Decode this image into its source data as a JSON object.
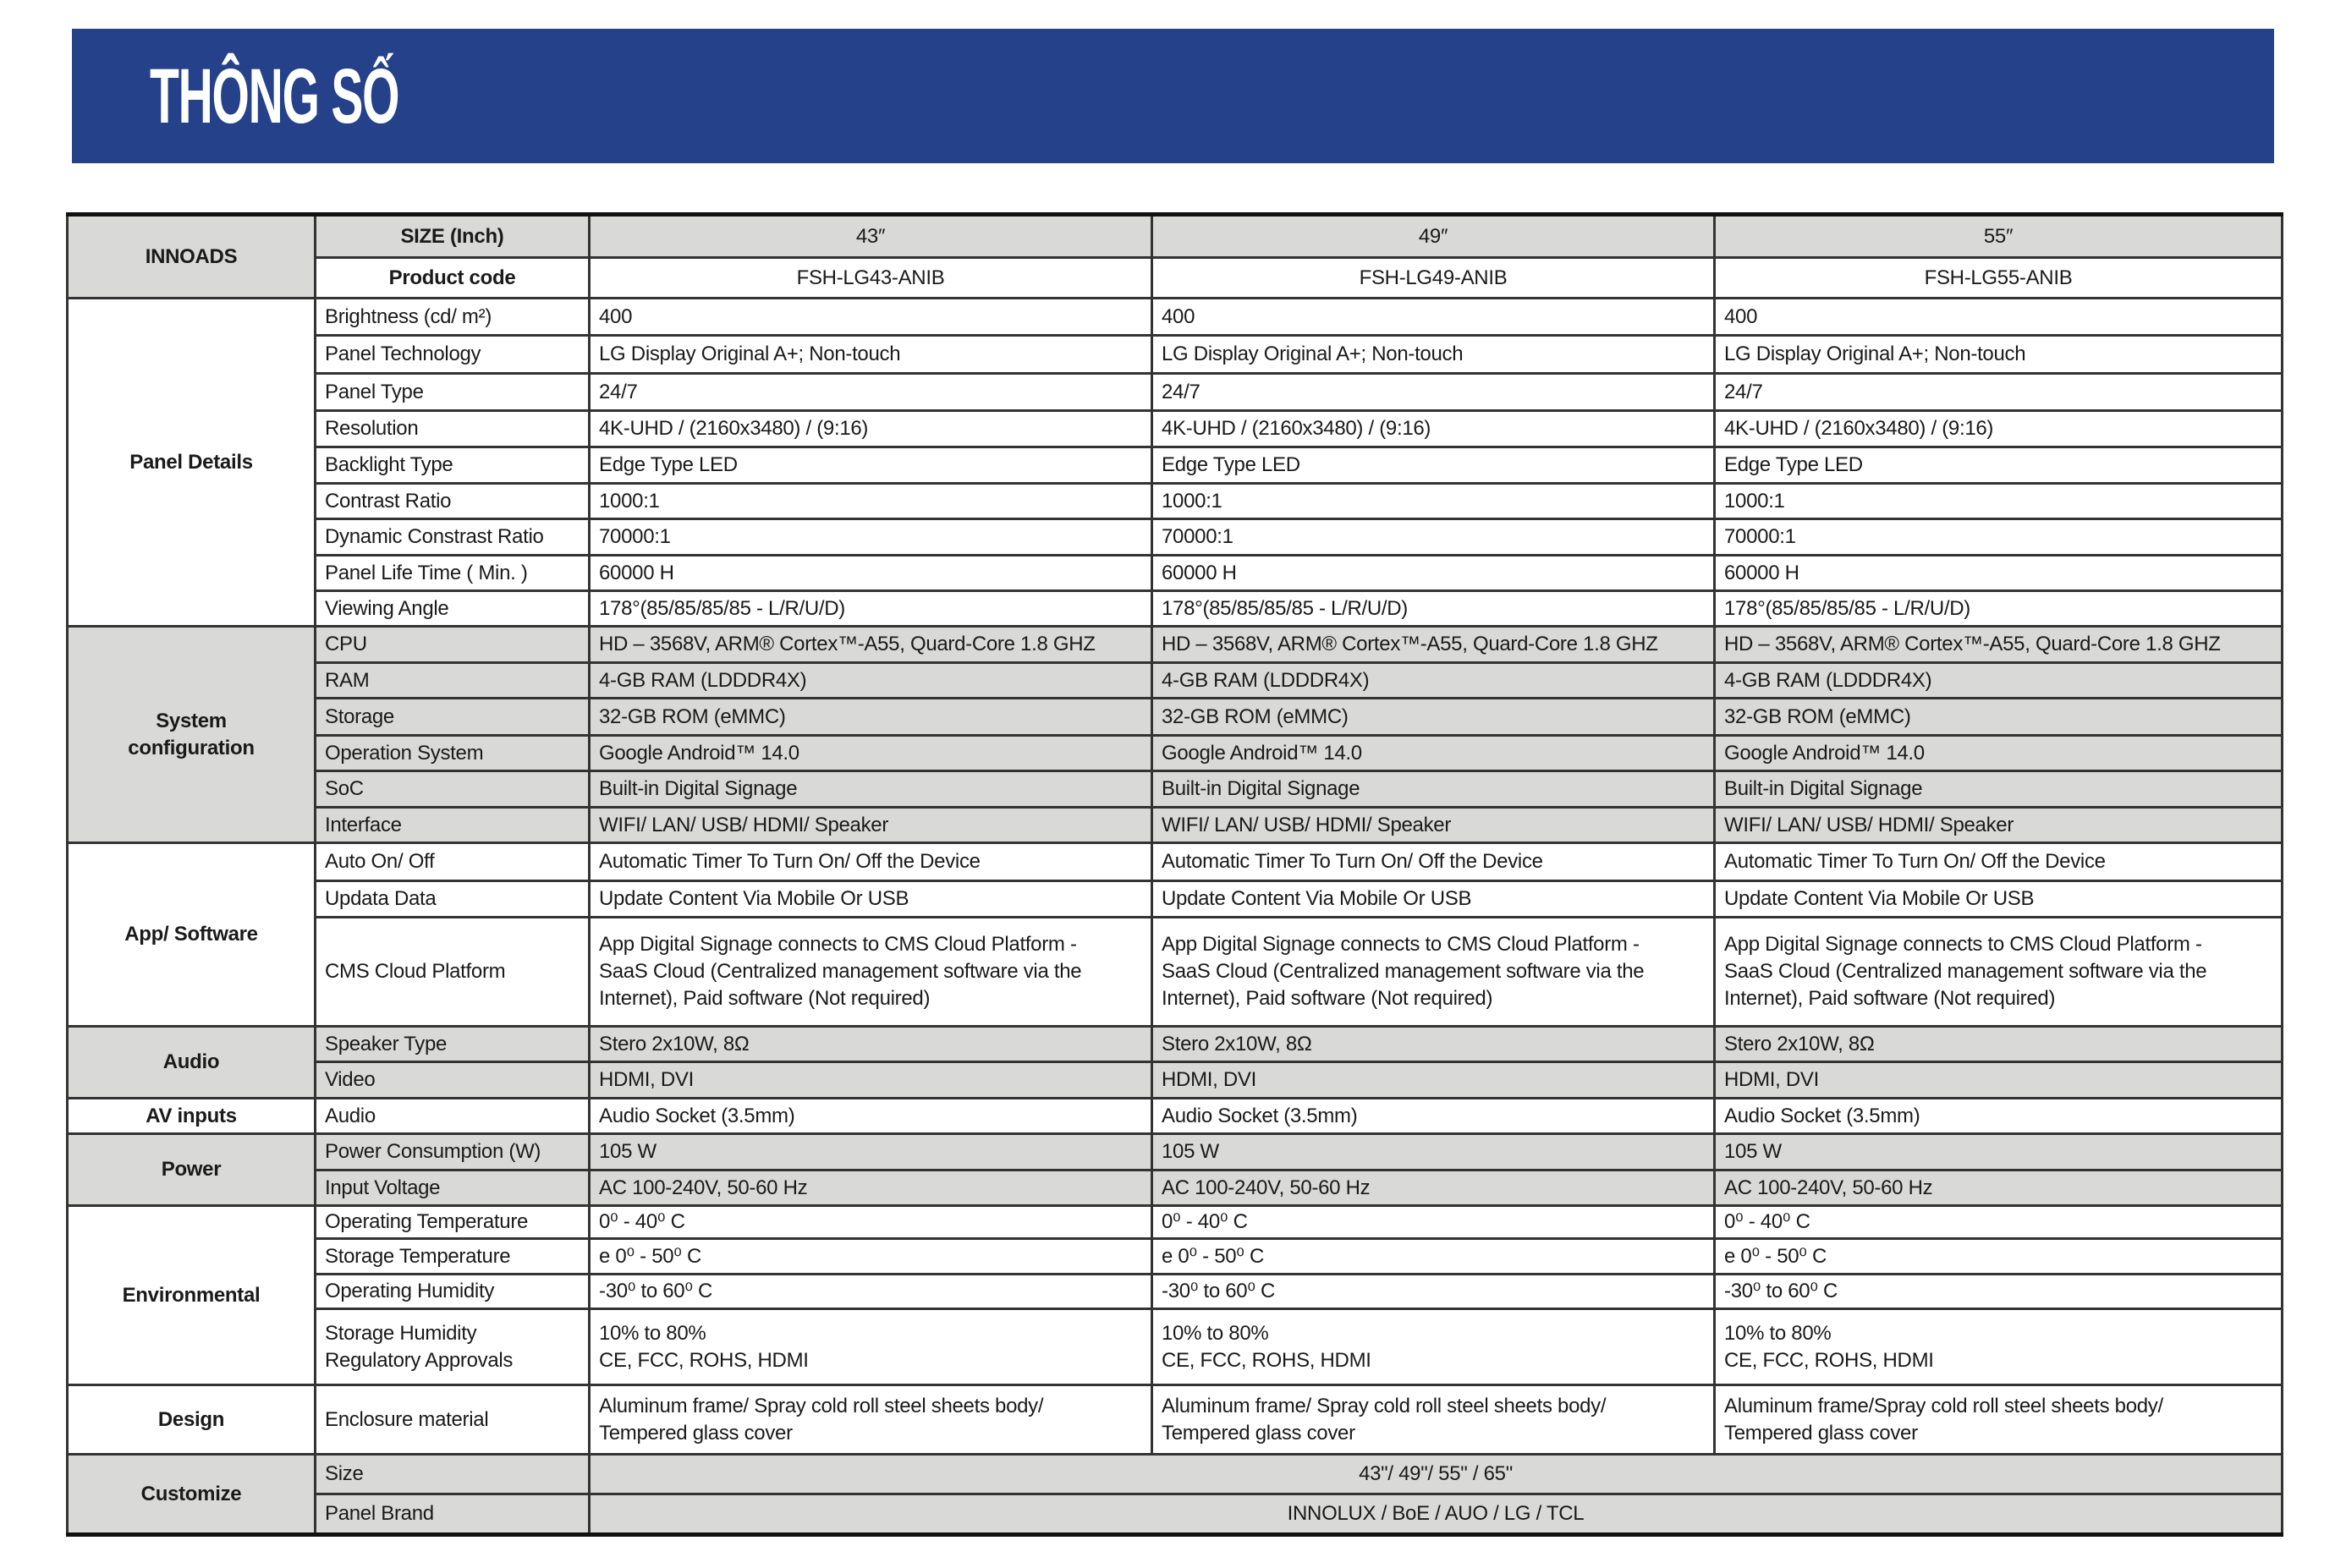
{
  "title": "THÔNG SỐ",
  "colors": {
    "banner": "#24418a",
    "shade": "#d9d9d7"
  },
  "header": {
    "brand": "INNOADS",
    "size_label": "SIZE (Inch)",
    "sizes": [
      "43″",
      "49″",
      "55″"
    ],
    "code_label": "Product code",
    "codes": [
      "FSH-LG43-ANIB",
      "FSH-LG49-ANIB",
      "FSH-LG55-ANIB"
    ]
  },
  "groups": [
    {
      "label": "Panel Details",
      "shaded": false,
      "rows": [
        {
          "label": "Brightness (cd/ m²)",
          "values": [
            "400",
            "400",
            "400"
          ]
        },
        {
          "label": "Panel Technology",
          "values": [
            " LG Display Original A+; Non-touch",
            " LG Display Original A+; Non-touch",
            " LG Display Original A+; Non-touch"
          ]
        },
        {
          "label": "Panel Type",
          "values": [
            "24/7",
            "24/7",
            "24/7"
          ]
        },
        {
          "label": "Resolution",
          "values": [
            "4K-UHD / (2160x3480) / (9:16)",
            "4K-UHD / (2160x3480) / (9:16)",
            "4K-UHD / (2160x3480) / (9:16)"
          ]
        },
        {
          "label": "Backlight Type",
          "values": [
            "Edge Type LED",
            "Edge Type LED",
            "Edge Type LED"
          ]
        },
        {
          "label": "Contrast Ratio",
          "values": [
            "1000:1",
            "1000:1",
            "1000:1"
          ]
        },
        {
          "label": "Dynamic Constrast Ratio",
          "values": [
            "70000:1",
            "70000:1",
            "70000:1"
          ]
        },
        {
          "label": "Panel Life Time ( Min. )",
          "values": [
            "60000 H",
            "60000 H",
            "60000 H"
          ]
        },
        {
          "label": "Viewing Angle",
          "values": [
            "178°(85/85/85/85 - L/R/U/D)",
            "178°(85/85/85/85 - L/R/U/D)",
            "178°(85/85/85/85 - L/R/U/D)"
          ]
        }
      ]
    },
    {
      "label": "System\nconfiguration",
      "shaded": true,
      "rows": [
        {
          "label": "CPU",
          "values": [
            "HD – 3568V, ARM® Cortex™-A55, Quard-Core 1.8 GHZ",
            "HD – 3568V, ARM® Cortex™-A55, Quard-Core 1.8 GHZ",
            "HD – 3568V, ARM® Cortex™-A55, Quard-Core 1.8 GHZ"
          ]
        },
        {
          "label": "RAM",
          "values": [
            "4-GB RAM (LDDDR4X)",
            "4-GB RAM (LDDDR4X)",
            "4-GB RAM (LDDDR4X)"
          ]
        },
        {
          "label": "Storage",
          "values": [
            "32-GB ROM (eMMC)",
            "32-GB ROM (eMMC)",
            "32-GB ROM (eMMC)"
          ]
        },
        {
          "label": "Operation System",
          "values": [
            "Google Android™ 14.0",
            "Google Android™ 14.0",
            "Google Android™ 14.0"
          ]
        },
        {
          "label": "SoC",
          "values": [
            "Built-in Digital Signage",
            "Built-in Digital Signage",
            "Built-in Digital Signage"
          ]
        },
        {
          "label": "Interface",
          "values": [
            "WIFI/ LAN/ USB/ HDMI/ Speaker",
            "WIFI/ LAN/ USB/ HDMI/ Speaker",
            "WIFI/ LAN/ USB/ HDMI/ Speaker"
          ]
        }
      ]
    },
    {
      "label": "App/ Software",
      "shaded": false,
      "rows": [
        {
          "label": "Auto On/ Off",
          "values": [
            "Automatic Timer To Turn On/ Off the Device",
            "Automatic Timer To Turn On/ Off the Device",
            "Automatic Timer To Turn On/ Off the Device"
          ]
        },
        {
          "label": "Updata Data",
          "values": [
            "Update Content Via Mobile Or USB",
            "Update Content Via Mobile Or USB",
            "Update Content Via Mobile Or USB"
          ]
        },
        {
          "label": "CMS Cloud Platform",
          "values": [
            "App Digital Signage connects to CMS Cloud Platform -\nSaaS Cloud (Centralized management software via the\nInternet), Paid software (Not required)",
            "App Digital Signage connects to CMS Cloud Platform -\nSaaS Cloud (Centralized management software via the\nInternet), Paid software (Not required)",
            "App Digital Signage connects to CMS Cloud Platform -\nSaaS Cloud (Centralized management software via the\nInternet), Paid software (Not required)"
          ]
        }
      ]
    },
    {
      "label": "Audio",
      "shaded": true,
      "rows": [
        {
          "label": "Speaker Type",
          "values": [
            "Stero 2x10W, 8Ω",
            "Stero 2x10W, 8Ω",
            "Stero 2x10W, 8Ω"
          ]
        },
        {
          "label": "Video",
          "values": [
            "HDMI, DVI",
            "HDMI, DVI",
            "HDMI, DVI"
          ]
        }
      ]
    },
    {
      "label": "AV inputs",
      "shaded": false,
      "rows": [
        {
          "label": "Audio",
          "values": [
            "Audio Socket (3.5mm)",
            "Audio Socket (3.5mm)",
            "Audio Socket (3.5mm)"
          ]
        }
      ]
    },
    {
      "label": "Power",
      "shaded": true,
      "rows": [
        {
          "label": "Power Consumption (W)",
          "values": [
            "105 W",
            "105 W",
            "105 W"
          ]
        },
        {
          "label": "Input Voltage",
          "values": [
            "AC 100-240V, 50-60 Hz",
            "AC 100-240V, 50-60 Hz",
            "AC 100-240V, 50-60 Hz"
          ]
        }
      ]
    },
    {
      "label": "Environmental",
      "shaded": false,
      "rows": [
        {
          "label": "Operating Temperature",
          "values": [
            "0⁰ - 40⁰ C",
            "0⁰ - 40⁰ C",
            "0⁰ - 40⁰ C"
          ]
        },
        {
          "label": "Storage Temperature",
          "values": [
            "e 0⁰ - 50⁰ C",
            "e 0⁰ - 50⁰ C",
            "e 0⁰ - 50⁰ C"
          ]
        },
        {
          "label": "Operating Humidity",
          "values": [
            "-30⁰ to 60⁰ C",
            "-30⁰ to 60⁰ C",
            "-30⁰ to 60⁰ C"
          ]
        },
        {
          "label": "Storage Humidity\nRegulatory Approvals",
          "values": [
            "10% to 80%\nCE, FCC, ROHS, HDMI",
            "10% to 80%\nCE, FCC, ROHS, HDMI",
            "10% to 80%\nCE, FCC, ROHS, HDMI"
          ]
        }
      ]
    },
    {
      "label": "Design",
      "shaded": false,
      "rows": [
        {
          "label": "Enclosure material",
          "values": [
            "Aluminum frame/ Spray cold roll steel sheets body/\nTempered glass cover",
            "Aluminum frame/ Spray cold roll steel sheets body/\nTempered glass cover",
            "Aluminum frame/Spray cold roll steel sheets body/\nTempered glass cover"
          ]
        }
      ]
    },
    {
      "label": "Customize",
      "shaded": true,
      "rows": [
        {
          "label": "Size",
          "merged": "43\"/ 49\"/ 55\" / 65\""
        },
        {
          "label": "Panel Brand",
          "merged": "INNOLUX / BoE / AUO / LG / TCL"
        }
      ]
    }
  ]
}
